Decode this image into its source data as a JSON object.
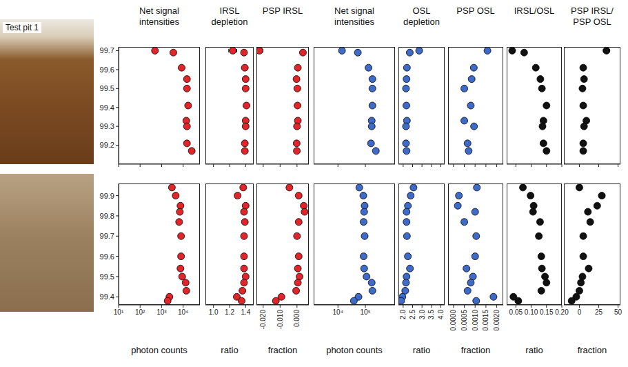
{
  "chart_data": [
    {
      "type": "scatter",
      "title": "Net signal intensities",
      "annotation": "Test pit 1",
      "color": "#e0262b",
      "log": "x",
      "tick_labels": "y",
      "xlim": [
        10,
        60000
      ],
      "xticks": [
        {
          "value": 10,
          "label": "10¹"
        },
        {
          "value": 100,
          "label": "10²"
        },
        {
          "value": 1000,
          "label": "10³"
        },
        {
          "value": 10000,
          "label": "10⁴"
        }
      ],
      "ylim": [
        99.1,
        99.72
      ],
      "yticks": [
        99.2,
        99.3,
        99.4,
        99.5,
        99.6,
        99.7
      ],
      "y": [
        99.7,
        99.69,
        99.61,
        99.55,
        99.5,
        99.41,
        99.33,
        99.3,
        99.21,
        99.17
      ],
      "x": [
        490,
        3500,
        8500,
        15000,
        15000,
        17000,
        14000,
        15000,
        15000,
        25000
      ]
    },
    {
      "type": "scatter",
      "title": "IRSL depletion",
      "color": "#e0262b",
      "tick_labels": false,
      "xlim": [
        0.9,
        1.5
      ],
      "xticks": [
        {
          "value": 1,
          "label": "1.0"
        },
        1.2,
        1.4
      ],
      "ylim": [
        99.1,
        99.72
      ],
      "y": [
        99.7,
        99.69,
        99.61,
        99.55,
        99.5,
        99.41,
        99.33,
        99.3,
        99.21,
        99.17
      ],
      "x": [
        1.24,
        1.38,
        1.39,
        1.4,
        1.4,
        1.41,
        1.4,
        1.4,
        1.39,
        1.39
      ],
      "errors": [
        0.05,
        null,
        null,
        null,
        null,
        null,
        null,
        null,
        null,
        null
      ]
    },
    {
      "type": "scatter",
      "title": "PSP IRSL",
      "color": "#e0262b",
      "tick_labels": false,
      "xlim": [
        -0.024,
        0.007
      ],
      "xticks": [
        {
          "value": -0.02,
          "label": "-0.020"
        },
        {
          "value": -0.01,
          "label": "-0.010"
        },
        {
          "value": 0,
          "label": "0.000"
        }
      ],
      "ylim": [
        99.1,
        99.72
      ],
      "y": [
        99.7,
        99.69,
        99.61,
        99.55,
        99.5,
        99.41,
        99.33,
        99.3,
        99.21,
        99.17
      ],
      "x": [
        -0.0222,
        0.0035,
        0.0005,
        -0.0003,
        0.0002,
        0.0003,
        0.0005,
        0,
        -0.0002,
        -0.0001
      ],
      "errors": [
        0.002,
        null,
        null,
        null,
        null,
        null,
        null,
        null,
        null,
        null
      ]
    },
    {
      "type": "scatter",
      "title": "Net signal intensities",
      "color": "#3d6bc7",
      "log": "x",
      "tick_labels": false,
      "xlim": [
        1300,
        1200000
      ],
      "xticks": [
        {
          "value": 10000,
          "label": "10⁴"
        },
        {
          "value": 100000,
          "label": "10⁵"
        }
      ],
      "ylim": [
        99.1,
        99.72
      ],
      "y": [
        99.7,
        99.69,
        99.61,
        99.55,
        99.5,
        99.41,
        99.33,
        99.3,
        99.21,
        99.17
      ],
      "x": [
        14000,
        53000,
        130000,
        180000,
        180000,
        180000,
        170000,
        170000,
        160000,
        240000
      ]
    },
    {
      "type": "scatter",
      "title": "OSL depletion",
      "color": "#3d6bc7",
      "tick_labels": false,
      "xlim": [
        1.75,
        4.2
      ],
      "xticks": [
        {
          "value": 2,
          "label": "2.0"
        },
        2.5,
        {
          "value": 3,
          "label": "3.0"
        },
        3.5,
        {
          "value": 4,
          "label": "4.0"
        }
      ],
      "ylim": [
        99.1,
        99.72
      ],
      "y": [
        99.7,
        99.69,
        99.61,
        99.55,
        99.5,
        99.41,
        99.33,
        99.3,
        99.21,
        99.17
      ],
      "x": [
        2.85,
        2.35,
        2.2,
        2.18,
        2.15,
        2.17,
        2.2,
        2.15,
        2.15,
        2.18
      ]
    },
    {
      "type": "scatter",
      "title": "PSP OSL",
      "color": "#3d6bc7",
      "tick_labels": false,
      "xlim": [
        -0.00025,
        0.0023
      ],
      "xticks": [
        {
          "value": 0,
          "label": "0.0000"
        },
        0.0005,
        {
          "value": 0.001,
          "label": "0.0010"
        },
        0.0015,
        {
          "value": 0.002,
          "label": "0.0020"
        }
      ],
      "ylim": [
        99.1,
        99.72
      ],
      "y": [
        99.7,
        99.69,
        99.61,
        99.55,
        99.5,
        99.41,
        99.33,
        99.3,
        99.21,
        99.17
      ],
      "x": [
        0.00157,
        null,
        0.00094,
        0.00084,
        0.0005,
        0.0008,
        0.0005,
        0.00095,
        0.00065,
        0.0007
      ],
      "errors": [
        0.0001,
        null,
        null,
        null,
        null,
        null,
        null,
        null,
        null,
        null
      ]
    },
    {
      "type": "scatter",
      "title": "IRSL/OSL",
      "color": "#111111",
      "tick_labels": false,
      "xlim": [
        0.02,
        0.2
      ],
      "xticks": [
        0.05,
        {
          "value": 0.1,
          "label": "0.10"
        },
        0.15,
        {
          "value": 0.2,
          "label": "0.20"
        }
      ],
      "ylim": [
        99.1,
        99.72
      ],
      "y": [
        99.7,
        99.69,
        99.61,
        99.55,
        99.5,
        99.41,
        99.33,
        99.3,
        99.21,
        99.17
      ],
      "x": [
        0.038,
        0.077,
        0.115,
        0.13,
        0.135,
        0.15,
        0.14,
        0.137,
        0.14,
        0.15
      ]
    },
    {
      "type": "scatter",
      "title": "PSP IRSL/ PSP OSL",
      "color": "#111111",
      "tick_labels": false,
      "xlim": [
        -20,
        53
      ],
      "xticks": [
        0,
        25,
        50
      ],
      "ylim": [
        99.1,
        99.72
      ],
      "y": [
        99.7,
        99.69,
        99.61,
        99.55,
        99.5,
        99.41,
        99.33,
        99.3,
        99.21,
        99.17
      ],
      "x": [
        35,
        null,
        5,
        6,
        4,
        5,
        9,
        6,
        5,
        5
      ],
      "errors": [
        4,
        null,
        null,
        null,
        null,
        null,
        null,
        null,
        null,
        null
      ]
    },
    {
      "type": "scatter",
      "x_label": "photon counts",
      "color": "#e0262b",
      "log": "x",
      "tick_labels": true,
      "xlim": [
        10,
        60000
      ],
      "xticks": [
        {
          "value": 10,
          "label": "10¹"
        },
        {
          "value": 100,
          "label": "10²"
        },
        {
          "value": 1000,
          "label": "10³"
        },
        {
          "value": 10000,
          "label": "10⁴"
        }
      ],
      "ylim": [
        99.36,
        99.96
      ],
      "yticks": [
        99.4,
        99.5,
        99.6,
        99.7,
        99.8,
        99.9
      ],
      "y": [
        99.94,
        99.9,
        99.85,
        99.82,
        99.77,
        99.7,
        99.6,
        99.54,
        99.5,
        99.47,
        99.43,
        99.4,
        99.38
      ],
      "x": [
        3000,
        4500,
        7500,
        7000,
        6500,
        8000,
        8000,
        7500,
        9000,
        13000,
        14000,
        2300,
        1900
      ]
    },
    {
      "type": "scatter",
      "x_label": "ratio",
      "color": "#e0262b",
      "tick_labels": "x",
      "xlim": [
        0.9,
        1.5
      ],
      "xticks": [
        {
          "value": 1,
          "label": "1.0"
        },
        1.2,
        1.4
      ],
      "ylim": [
        99.36,
        99.96
      ],
      "y": [
        99.94,
        99.9,
        99.85,
        99.82,
        99.77,
        99.7,
        99.6,
        99.54,
        99.5,
        99.47,
        99.43,
        99.4,
        99.38
      ],
      "x": [
        1.37,
        1.3,
        1.4,
        1.38,
        1.39,
        1.38,
        1.38,
        1.38,
        1.4,
        1.38,
        1.36,
        1.29,
        1.35
      ]
    },
    {
      "type": "scatter",
      "x_label": "fraction",
      "color": "#e0262b",
      "tick_labels": "x",
      "xlim": [
        -0.024,
        0.007
      ],
      "xticks": [
        {
          "value": -0.02,
          "label": "-0.020"
        },
        {
          "value": -0.01,
          "label": "-0.010"
        },
        {
          "value": 0,
          "label": "0.000"
        }
      ],
      "ylim": [
        99.36,
        99.96
      ],
      "y": [
        99.94,
        99.9,
        99.85,
        99.82,
        99.77,
        99.7,
        99.6,
        99.54,
        99.5,
        99.47,
        99.43,
        99.4,
        99.38
      ],
      "x": [
        -0.0045,
        0.001,
        0.004,
        0.0045,
        0.001,
        0,
        0.001,
        0.0005,
        0.0015,
        0.0005,
        -0.0005,
        -0.0092,
        -0.0125
      ]
    },
    {
      "type": "scatter",
      "x_label": "photon counts",
      "color": "#3d6bc7",
      "log": "x",
      "tick_labels": "x",
      "xlim": [
        1300,
        1200000
      ],
      "xticks": [
        {
          "value": 10000,
          "label": "10⁴"
        },
        {
          "value": 100000,
          "label": "10⁵"
        }
      ],
      "ylim": [
        99.36,
        99.96
      ],
      "y": [
        99.94,
        99.9,
        99.85,
        99.82,
        99.77,
        99.7,
        99.6,
        99.54,
        99.5,
        99.47,
        99.43,
        99.4,
        99.38
      ],
      "x": [
        60000,
        84000,
        94000,
        90000,
        86000,
        94000,
        86000,
        90000,
        110000,
        170000,
        180000,
        56000,
        38000
      ]
    },
    {
      "type": "scatter",
      "x_label": "ratio",
      "color": "#3d6bc7",
      "tick_labels": "x",
      "xlim": [
        1.75,
        4.2
      ],
      "xticks": [
        {
          "value": 2,
          "label": "2.0"
        },
        2.5,
        {
          "value": 3,
          "label": "3.0"
        },
        3.5,
        {
          "value": 4,
          "label": "4.0"
        }
      ],
      "ylim": [
        99.36,
        99.96
      ],
      "y": [
        99.94,
        99.9,
        99.85,
        99.82,
        99.77,
        99.7,
        99.6,
        99.54,
        99.5,
        99.47,
        99.43,
        99.4,
        99.38
      ],
      "x": [
        2.55,
        2.4,
        2.25,
        2.18,
        2.18,
        2.2,
        2.25,
        2.36,
        2.18,
        2.15,
        2.11,
        1.96,
        1.89
      ]
    },
    {
      "type": "scatter",
      "x_label": "fraction",
      "color": "#3d6bc7",
      "tick_labels": "x",
      "xlim": [
        -0.00025,
        0.0023
      ],
      "xticks": [
        {
          "value": 0,
          "label": "0.0000"
        },
        0.0005,
        {
          "value": 0.001,
          "label": "0.0010"
        },
        0.0015,
        {
          "value": 0.002,
          "label": "0.0020"
        }
      ],
      "ylim": [
        99.36,
        99.96
      ],
      "y": [
        99.94,
        99.9,
        99.85,
        99.82,
        99.77,
        99.7,
        99.6,
        99.54,
        99.5,
        99.47,
        99.43,
        99.4,
        99.38
      ],
      "x": [
        0.00108,
        0.00025,
        0.0002,
        0.001,
        0.0005,
        0.00105,
        0.001,
        0.0006,
        0.0009,
        0.0008,
        0.00065,
        0.00185,
        0.00105
      ],
      "errors": [
        null,
        null,
        null,
        null,
        null,
        null,
        null,
        null,
        null,
        null,
        null,
        0.0001,
        null
      ]
    },
    {
      "type": "scatter",
      "x_label": "ratio",
      "color": "#111111",
      "tick_labels": "x",
      "xlim": [
        0.02,
        0.2
      ],
      "xticks": [
        0.05,
        {
          "value": 0.1,
          "label": "0.10"
        },
        0.15,
        {
          "value": 0.2,
          "label": "0.20"
        }
      ],
      "ylim": [
        99.36,
        99.96
      ],
      "y": [
        99.94,
        99.9,
        99.85,
        99.82,
        99.77,
        99.7,
        99.6,
        99.54,
        99.5,
        99.47,
        99.43,
        99.4,
        99.38
      ],
      "x": [
        0.073,
        0.098,
        0.108,
        0.106,
        0.129,
        0.125,
        0.133,
        0.135,
        0.145,
        0.15,
        0.133,
        0.042,
        0.058
      ]
    },
    {
      "type": "scatter",
      "x_label": "fraction",
      "color": "#111111",
      "tick_labels": "x",
      "xlim": [
        -20,
        53
      ],
      "xticks": [
        0,
        25,
        50
      ],
      "ylim": [
        99.36,
        99.96
      ],
      "y": [
        99.94,
        99.9,
        99.85,
        99.82,
        99.77,
        99.7,
        99.6,
        99.54,
        99.5,
        99.47,
        99.43,
        99.4,
        99.38
      ],
      "x": [
        0,
        29,
        23,
        11,
        14,
        5,
        5,
        12,
        4,
        2,
        0,
        -4,
        -10
      ],
      "errors": [
        null,
        4,
        3,
        null,
        null,
        null,
        null,
        null,
        null,
        null,
        null,
        null,
        null
      ]
    }
  ]
}
